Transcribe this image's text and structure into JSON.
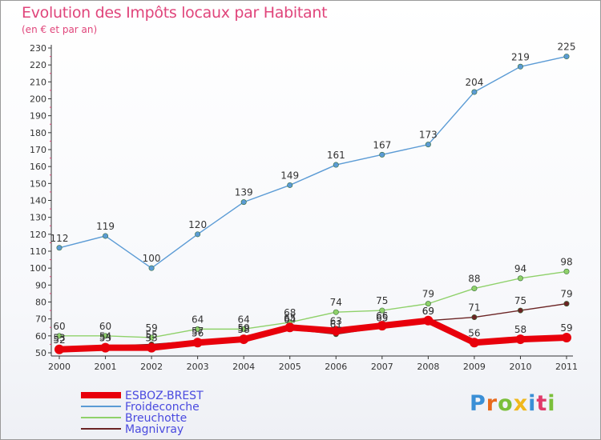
{
  "header": {
    "title": "Evolution des Impôts locaux par Habitant",
    "subtitle": "(en € et par an)"
  },
  "logo": {
    "text": "Proxiti"
  },
  "chart_data": {
    "type": "line",
    "title": "Evolution des Impôts locaux par Habitant",
    "subtitle": "(en € et par an)",
    "xlabel": "",
    "ylabel": "",
    "x": [
      "2000",
      "2001",
      "2002",
      "2003",
      "2004",
      "2005",
      "2006",
      "2007",
      "2008",
      "2009",
      "2010",
      "2011"
    ],
    "ylim": [
      50,
      230
    ],
    "yticks": [
      50,
      60,
      70,
      80,
      90,
      100,
      110,
      120,
      130,
      140,
      150,
      160,
      170,
      180,
      190,
      200,
      210,
      220,
      230
    ],
    "grid": false,
    "legend_position": "bottom-left",
    "series": [
      {
        "name": "ESBOZ-BREST",
        "color": "#e8000b",
        "values": [
          52,
          53,
          53,
          56,
          58,
          65,
          63,
          66,
          69,
          56,
          58,
          59
        ],
        "labels": [
          "52",
          "53",
          "53",
          "56",
          "58",
          "65",
          "63",
          "66",
          "69",
          "56",
          "58",
          "59"
        ]
      },
      {
        "name": "Froideconche",
        "color": "#5b9bd5",
        "values": [
          112,
          119,
          100,
          120,
          139,
          149,
          161,
          167,
          173,
          204,
          219,
          225
        ],
        "labels": [
          "112",
          "119",
          "100",
          "120",
          "139",
          "149",
          "161",
          "167",
          "173",
          "204",
          "219",
          "225"
        ]
      },
      {
        "name": "Breuchotte",
        "color": "#8fd16a",
        "values": [
          60,
          60,
          59,
          64,
          64,
          68,
          74,
          75,
          79,
          88,
          94,
          98
        ],
        "labels": [
          "60",
          "60",
          "59",
          "64",
          "64",
          "68",
          "74",
          "75",
          "79",
          "88",
          "94",
          "98"
        ]
      },
      {
        "name": "Magnivray",
        "color": "#6b2424",
        "values": [
          53,
          54,
          55,
          57,
          59,
          64,
          61,
          65,
          69,
          71,
          75,
          79
        ],
        "labels": [
          "53",
          "54",
          "55",
          "57",
          "59",
          "64",
          "61",
          "65",
          "69",
          "71",
          "75",
          "79"
        ]
      }
    ]
  }
}
